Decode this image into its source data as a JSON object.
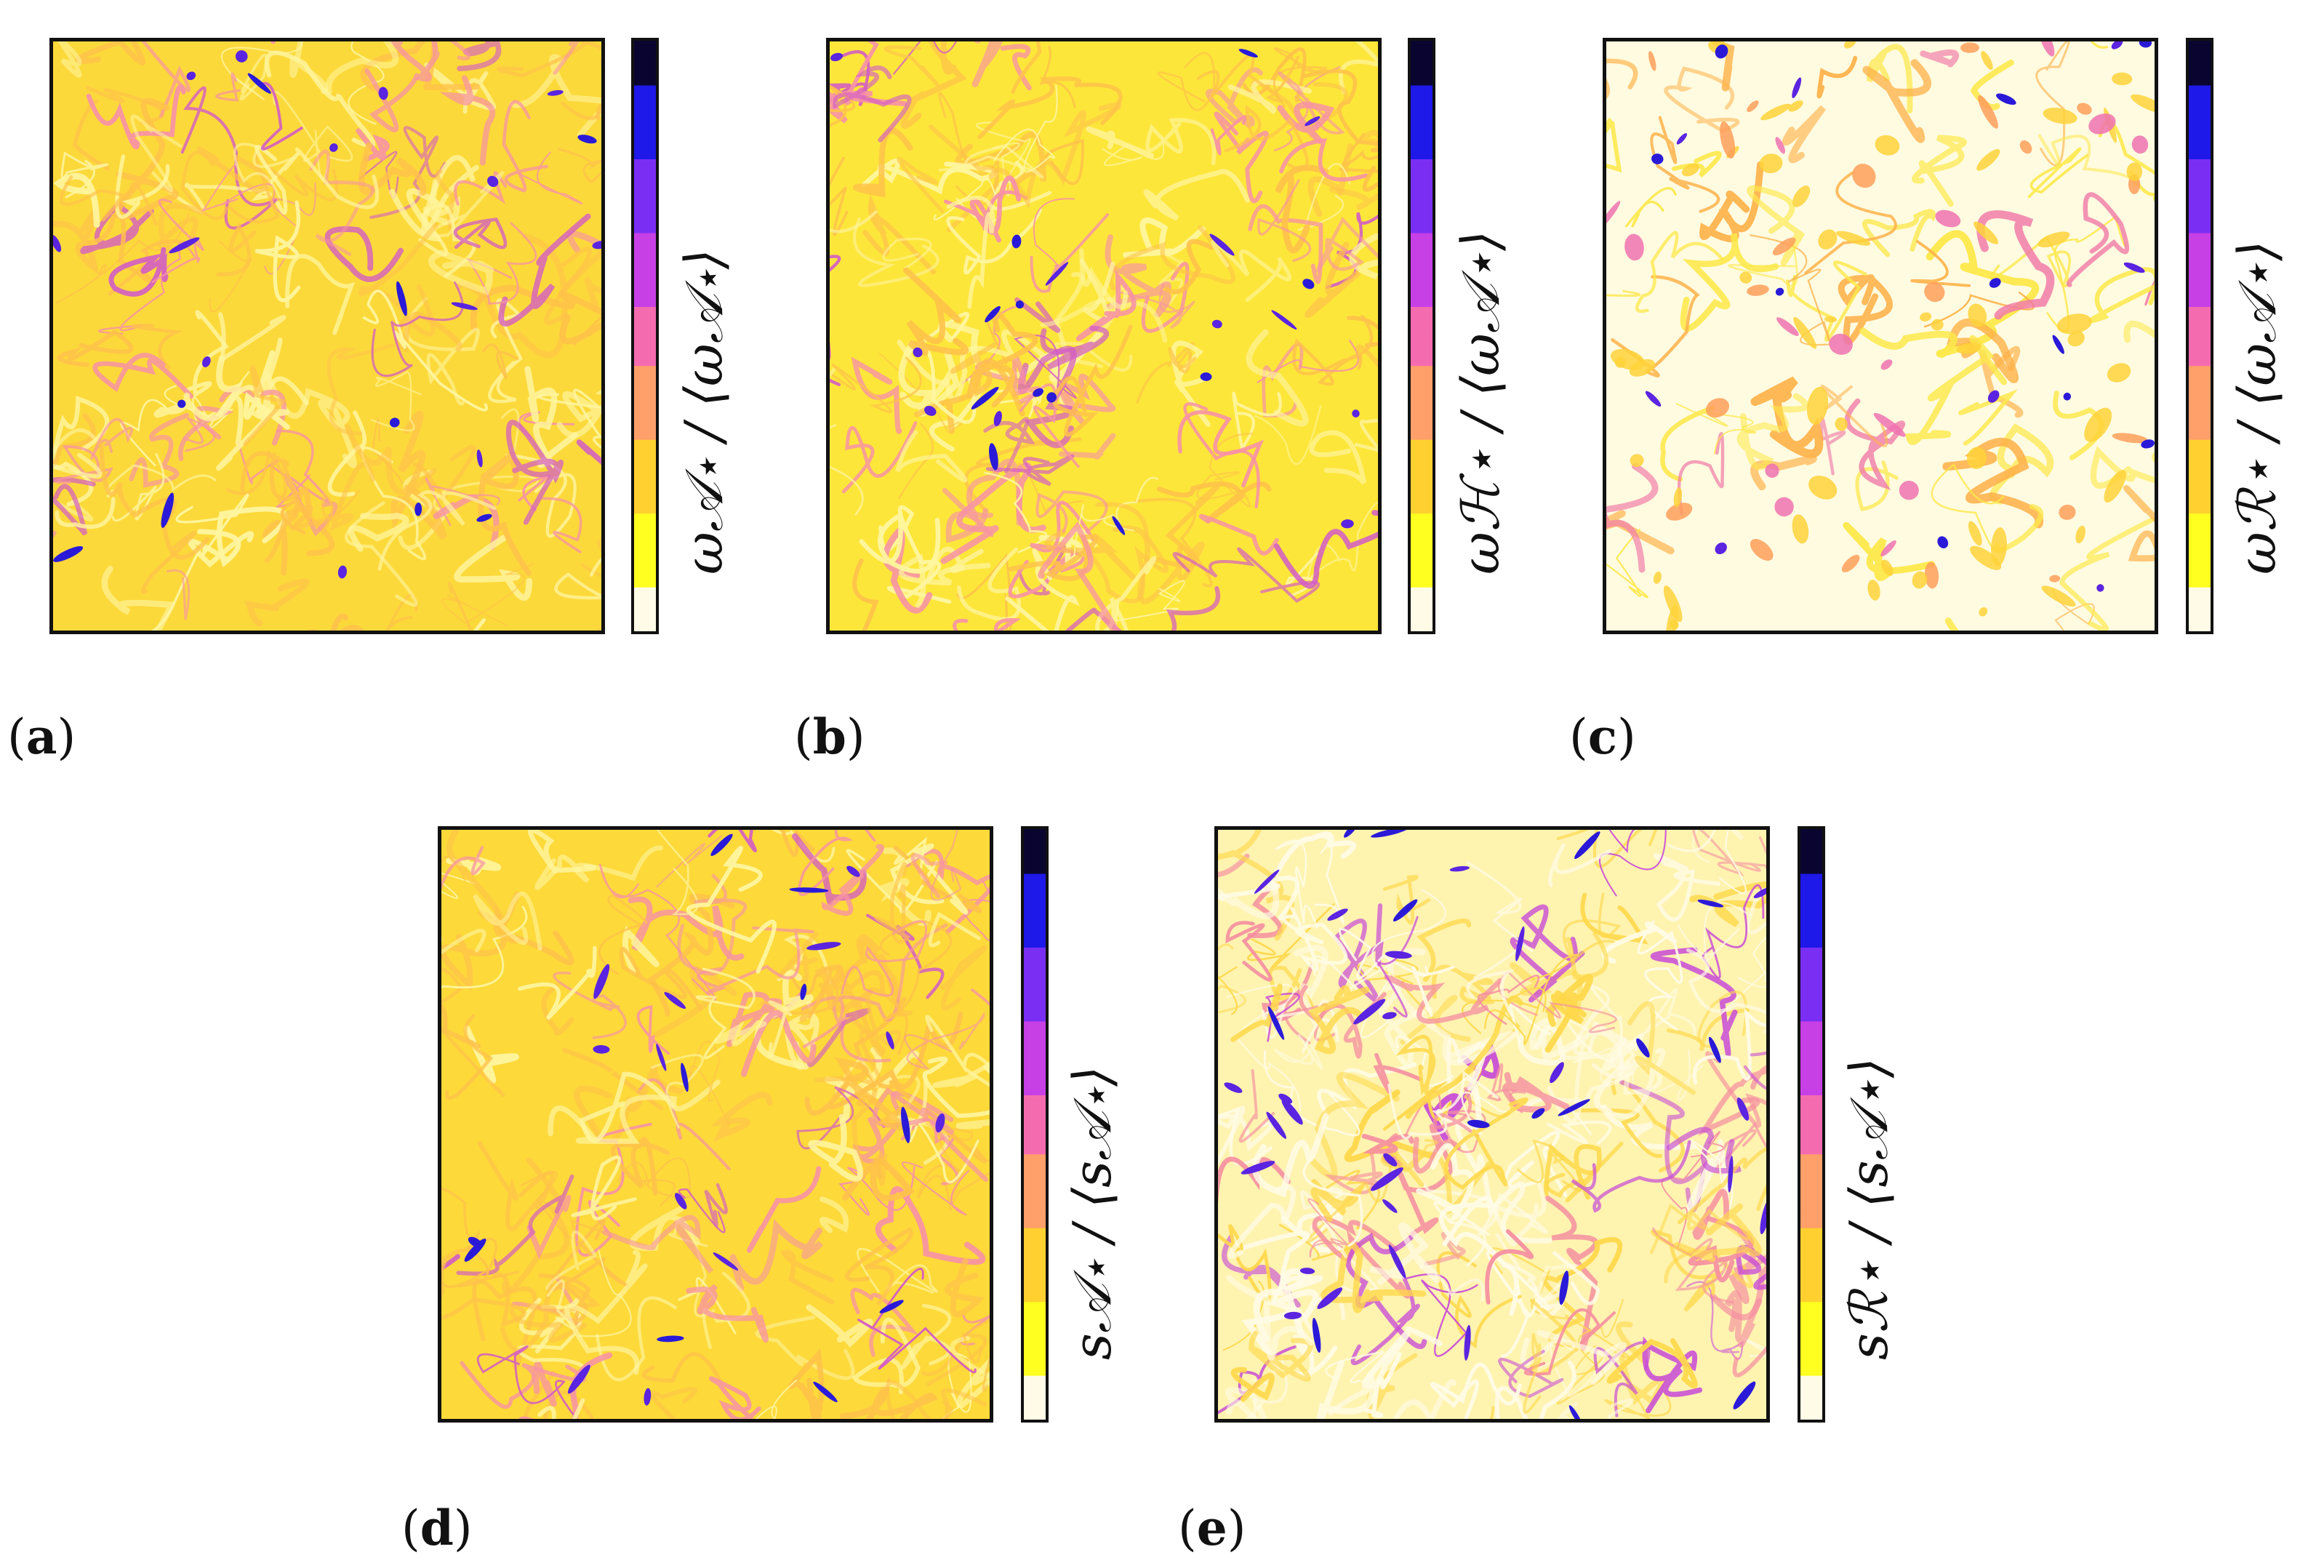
{
  "figure": {
    "colormap": [
      "#fffbe6",
      "#ffff20",
      "#ffd030",
      "#ff9f6a",
      "#f56bb0",
      "#c640e6",
      "#7a2ef4",
      "#1e18e8",
      "#0a0530"
    ],
    "panels": [
      {
        "id": "a",
        "label": "a",
        "colorbar_label": "ω𝒜⋆ / ⟨ω𝒜⋆⟩",
        "field": "vorticity",
        "filter": "𝒜⋆",
        "base_color": "#fcd93a"
      },
      {
        "id": "b",
        "label": "b",
        "colorbar_label": "ωℋ⋆ / ⟨ω𝒜⋆⟩",
        "field": "vorticity",
        "filter": "ℋ⋆",
        "base_color": "#fde63a"
      },
      {
        "id": "c",
        "label": "c",
        "colorbar_label": "ωℛ⋆ / ⟨ω𝒜⋆⟩",
        "field": "vorticity",
        "filter": "ℛ⋆",
        "base_color": "#fffbe0"
      },
      {
        "id": "d",
        "label": "d",
        "colorbar_label": "s𝒜⋆ / ⟨s𝒜⋆⟩",
        "field": "strain",
        "filter": "𝒜⋆",
        "base_color": "#fdd93a"
      },
      {
        "id": "e",
        "label": "e",
        "colorbar_label": "sℛ⋆ / ⟨s𝒜⋆⟩",
        "field": "strain",
        "filter": "ℛ⋆",
        "base_color": "#fff3b0"
      }
    ]
  }
}
